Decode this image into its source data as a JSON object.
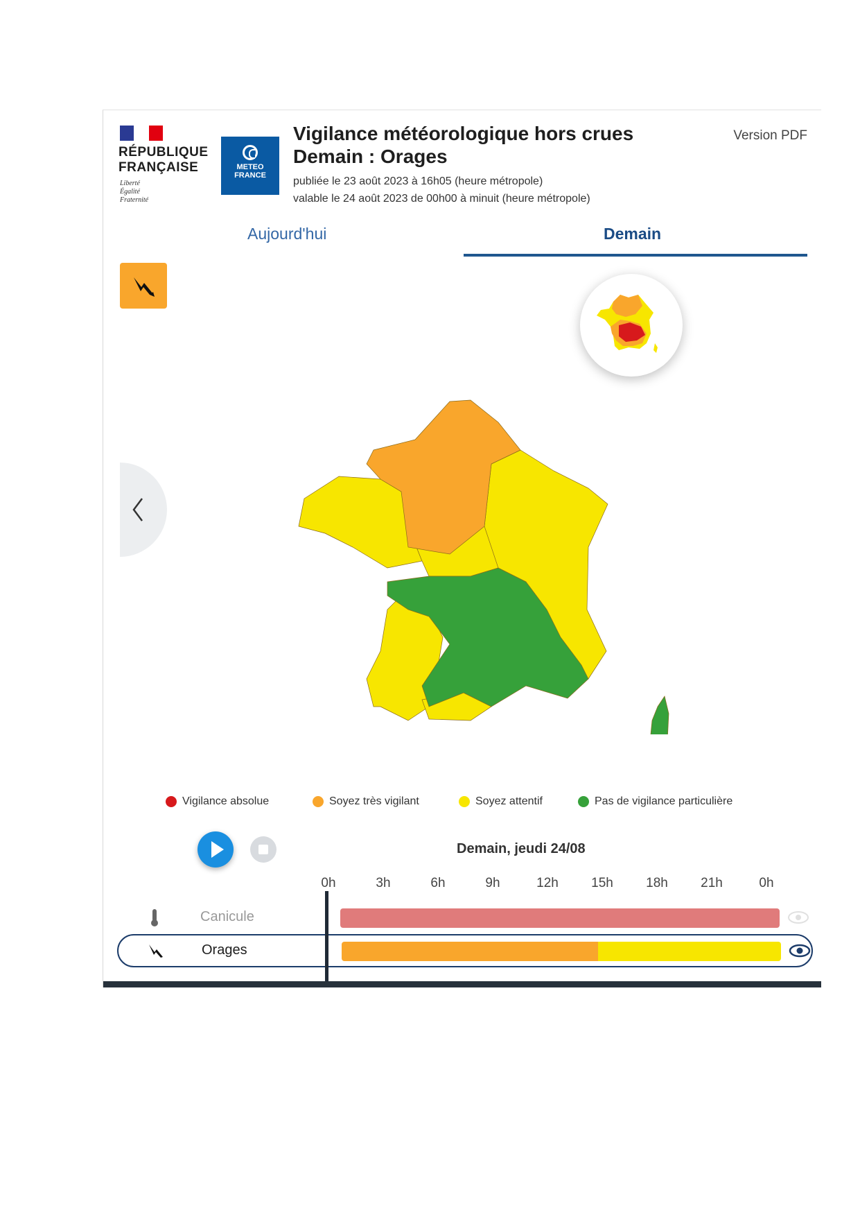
{
  "header": {
    "republique_line1": "RÉPUBLIQUE",
    "republique_line2": "FRANÇAISE",
    "motto": [
      "Liberté",
      "Égalité",
      "Fraternité"
    ],
    "meteo_logo_line1": "METEO",
    "meteo_logo_line2": "FRANCE",
    "title": "Vigilance météorologique hors crues",
    "subtitle": "Demain : Orages",
    "published": "publiée le 23 août 2023 à 16h05 (heure métropole)",
    "valid": "valable le 24 août 2023 de 00h00 à minuit (heure métropole)",
    "pdf_link": "Version PDF"
  },
  "tabs": {
    "today": "Aujourd'hui",
    "tomorrow": "Demain",
    "selected": "tomorrow"
  },
  "legend": [
    {
      "label": "Vigilance absolue",
      "color": "#d7191c"
    },
    {
      "label": "Soyez très vigilant",
      "color": "#f9a62c"
    },
    {
      "label": "Soyez attentif",
      "color": "#f7e600"
    },
    {
      "label": "Pas de vigilance particulière",
      "color": "#36a13a"
    }
  ],
  "timeline": {
    "date_label": "Demain, jeudi 24/08",
    "ticks": [
      "0h",
      "3h",
      "6h",
      "9h",
      "12h",
      "15h",
      "18h",
      "21h",
      "0h"
    ],
    "rows": [
      {
        "label": "Canicule",
        "icon": "thermometer-icon",
        "segments": [
          {
            "from_hour": 0,
            "to_hour": 24,
            "color": "#e07b7b"
          }
        ],
        "selected": false
      },
      {
        "label": "Orages",
        "icon": "lightning-icon",
        "segments": [
          {
            "from_hour": 0,
            "to_hour": 14,
            "color": "#f9a62c"
          },
          {
            "from_hour": 14,
            "to_hour": 24,
            "color": "#f7e600"
          }
        ],
        "selected": true
      }
    ]
  },
  "colors": {
    "orange": "#f9a62c",
    "yellow": "#f7e600",
    "green": "#36a13a",
    "red": "#d7191c",
    "accent_blue": "#1f578f"
  }
}
